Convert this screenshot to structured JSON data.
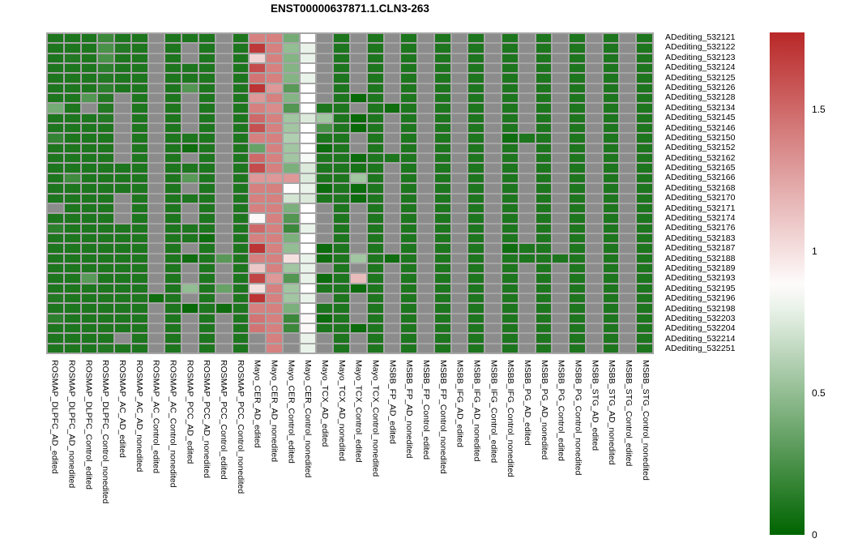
{
  "chart_data": {
    "type": "heatmap",
    "title": "ENST00000637871.1.CLN3-263",
    "rows": [
      "ADediting_532121",
      "ADediting_532122",
      "ADediting_532123",
      "ADediting_532124",
      "ADediting_532125",
      "ADediting_532126",
      "ADediting_532128",
      "ADediting_532134",
      "ADediting_532145",
      "ADediting_532146",
      "ADediting_532150",
      "ADediting_532152",
      "ADediting_532162",
      "ADediting_532165",
      "ADediting_532166",
      "ADediting_532168",
      "ADediting_532170",
      "ADediting_532171",
      "ADediting_532174",
      "ADediting_532176",
      "ADediting_532183",
      "ADediting_532187",
      "ADediting_532188",
      "ADediting_532189",
      "ADediting_532193",
      "ADediting_532195",
      "ADediting_532196",
      "ADediting_532198",
      "ADediting_532203",
      "ADediting_532204",
      "ADediting_532214",
      "ADediting_532251"
    ],
    "columns": [
      "ROSMAP_DLPFC_AD_edited",
      "ROSMAP_DLPFC_AD_nonedited",
      "ROSMAP_DLPFC_Control_edited",
      "ROSMAP_DLPFC_Control_nonedited",
      "ROSMAP_AC_AD_edited",
      "ROSMAP_AC_AD_nonedited",
      "ROSMAP_AC_Control_edited",
      "ROSMAP_AC_Control_nonedited",
      "ROSMAP_PCC_AD_edited",
      "ROSMAP_PCC_AD_nonedited",
      "ROSMAP_PCC_Control_edited",
      "ROSMAP_PCC_Control_nonedited",
      "Mayo_CER_AD_edited",
      "Mayo_CER_AD_nonedited",
      "Mayo_CER_Control_edited",
      "Mayo_CER_Control_nonedited",
      "Mayo_TCX_AD_edited",
      "Mayo_TCX_AD_nonedited",
      "Mayo_TCX_Control_edited",
      "Mayo_TCX_Control_nonedited",
      "MSBB_FP_AD_edited",
      "MSBB_FP_AD_nonedited",
      "MSBB_FP_Control_edited",
      "MSBB_FP_Control_nonedited",
      "MSBB_IFG_AD_edited",
      "MSBB_IFG_AD_nonedited",
      "MSBB_IFG_Control_edited",
      "MSBB_IFG_Control_nonedited",
      "MSBB_PG_AD_edited",
      "MSBB_PG_AD_nonedited",
      "MSBB_PG_Control_edited",
      "MSBB_PG_Control_nonedited",
      "MSBB_STG_AD_edited",
      "MSBB_STG_AD_nonedited",
      "MSBB_STG_Control_edited",
      "MSBB_STG_Control_nonedited"
    ],
    "values": [
      [
        0.1,
        0.1,
        0.1,
        0.2,
        0.1,
        0.1,
        null,
        0.1,
        0.1,
        0.1,
        null,
        0.1,
        1.4,
        1.4,
        0.4,
        0.87,
        null,
        0.1,
        null,
        0.1,
        null,
        0.1,
        null,
        0.1,
        null,
        0.1,
        null,
        0.1,
        null,
        0.1,
        null,
        0.1,
        null,
        0.1,
        null,
        0.1
      ],
      [
        0.1,
        0.1,
        0.1,
        0.25,
        0.12,
        0.1,
        null,
        0.1,
        null,
        0.1,
        null,
        0.1,
        1.7,
        1.4,
        0.5,
        0.8,
        null,
        0.1,
        null,
        0.1,
        null,
        0.1,
        null,
        0.1,
        null,
        0.1,
        null,
        0.1,
        null,
        0.1,
        null,
        0.1,
        null,
        0.1,
        null,
        0.1
      ],
      [
        0.1,
        0.12,
        0.1,
        0.25,
        0.1,
        0.1,
        null,
        0.1,
        null,
        0.1,
        null,
        0.1,
        1.05,
        1.4,
        0.45,
        0.8,
        null,
        0.1,
        null,
        0.1,
        null,
        0.1,
        null,
        0.1,
        null,
        0.1,
        null,
        0.1,
        null,
        0.1,
        null,
        0.1,
        null,
        0.1,
        null,
        0.1
      ],
      [
        0.1,
        0.1,
        0.1,
        0.15,
        0.1,
        0.1,
        null,
        0.1,
        0.1,
        0.1,
        null,
        0.1,
        1.62,
        1.4,
        0.45,
        0.87,
        null,
        0.1,
        null,
        0.1,
        null,
        0.1,
        null,
        0.1,
        null,
        0.1,
        null,
        0.1,
        null,
        0.1,
        null,
        0.1,
        null,
        0.1,
        null,
        0.1
      ],
      [
        0.1,
        0.1,
        0.1,
        0.12,
        0.1,
        0.1,
        null,
        0.1,
        0.1,
        0.1,
        null,
        0.1,
        1.45,
        1.4,
        0.45,
        0.8,
        null,
        0.1,
        null,
        0.1,
        null,
        0.1,
        null,
        0.1,
        null,
        0.1,
        null,
        0.1,
        null,
        0.1,
        null,
        0.1,
        null,
        0.1,
        null,
        0.1
      ],
      [
        0.1,
        0.1,
        0.1,
        0.15,
        0.1,
        0.1,
        null,
        0.1,
        0.28,
        0.1,
        null,
        0.1,
        1.72,
        1.3,
        0.3,
        0.87,
        null,
        0.1,
        null,
        0.1,
        null,
        0.1,
        null,
        0.1,
        null,
        0.1,
        null,
        0.1,
        null,
        0.1,
        null,
        0.1,
        null,
        0.1,
        null,
        0.1
      ],
      [
        0.1,
        0.1,
        0.28,
        0.12,
        null,
        0.1,
        null,
        0.1,
        null,
        0.1,
        null,
        0.1,
        1.3,
        1.4,
        0.45,
        0.87,
        null,
        0.1,
        0.03,
        0.1,
        null,
        0.1,
        null,
        0.1,
        null,
        0.1,
        null,
        0.1,
        null,
        0.1,
        null,
        0.1,
        null,
        0.1,
        null,
        0.1
      ],
      [
        0.4,
        0.1,
        null,
        0.12,
        null,
        0.1,
        null,
        0.1,
        null,
        0.1,
        null,
        0.1,
        1.4,
        1.35,
        0.28,
        0.87,
        0.1,
        0.1,
        null,
        0.1,
        0.05,
        0.1,
        null,
        0.1,
        null,
        0.1,
        null,
        0.1,
        null,
        0.1,
        null,
        0.1,
        null,
        0.1,
        null,
        0.1
      ],
      [
        0.1,
        0.1,
        0.1,
        0.12,
        null,
        0.1,
        null,
        0.1,
        null,
        0.1,
        null,
        0.1,
        1.5,
        1.4,
        0.55,
        0.75,
        0.55,
        0.1,
        0.03,
        0.1,
        null,
        0.1,
        null,
        0.1,
        null,
        0.1,
        null,
        0.1,
        null,
        0.1,
        null,
        0.1,
        null,
        0.1,
        null,
        0.1
      ],
      [
        0.1,
        0.1,
        0.1,
        0.1,
        null,
        0.1,
        null,
        0.1,
        null,
        0.1,
        null,
        0.1,
        1.6,
        1.4,
        0.55,
        0.87,
        0.25,
        0.1,
        0.03,
        0.1,
        null,
        0.1,
        null,
        0.1,
        null,
        0.1,
        null,
        0.1,
        null,
        0.1,
        null,
        0.1,
        null,
        0.1,
        null,
        0.1
      ],
      [
        0.18,
        0.1,
        0.1,
        0.1,
        null,
        0.1,
        null,
        0.1,
        0.1,
        0.1,
        null,
        0.1,
        1.4,
        1.4,
        0.6,
        0.87,
        0.1,
        0.1,
        null,
        0.1,
        null,
        0.1,
        null,
        0.1,
        null,
        0.1,
        null,
        0.05,
        0.1,
        0.1,
        null,
        0.1,
        null,
        0.1,
        null,
        0.1
      ],
      [
        0.1,
        0.1,
        0.1,
        0.1,
        null,
        0.1,
        null,
        0.1,
        0.05,
        0.1,
        null,
        0.1,
        0.35,
        1.4,
        0.55,
        0.87,
        0.04,
        0.1,
        null,
        0.1,
        null,
        0.1,
        null,
        0.1,
        null,
        0.1,
        null,
        0.1,
        null,
        0.1,
        null,
        0.1,
        null,
        0.1,
        null,
        0.1
      ],
      [
        0.1,
        0.1,
        0.1,
        0.1,
        null,
        0.1,
        null,
        0.1,
        null,
        0.1,
        null,
        0.1,
        1.5,
        1.4,
        0.55,
        0.84,
        0.1,
        0.1,
        0.04,
        0.1,
        0.1,
        0.1,
        null,
        0.1,
        null,
        0.1,
        null,
        0.1,
        null,
        0.1,
        null,
        0.1,
        null,
        0.1,
        null,
        0.1
      ],
      [
        0.1,
        0.1,
        0.1,
        0.1,
        0.1,
        0.1,
        null,
        0.1,
        0.1,
        0.1,
        null,
        0.1,
        1.62,
        1.4,
        0.42,
        0.75,
        0.1,
        0.1,
        0.08,
        0.1,
        null,
        0.1,
        null,
        0.1,
        null,
        0.1,
        null,
        0.1,
        null,
        0.1,
        null,
        0.1,
        null,
        0.1,
        null,
        0.1
      ],
      [
        0.1,
        0.22,
        0.1,
        0.1,
        0.1,
        0.1,
        null,
        0.1,
        0.3,
        0.1,
        null,
        0.1,
        1.3,
        1.3,
        1.3,
        0.75,
        0.1,
        0.1,
        0.55,
        0.1,
        null,
        0.1,
        null,
        0.1,
        null,
        0.1,
        null,
        0.1,
        null,
        0.1,
        null,
        0.1,
        null,
        0.1,
        null,
        0.1
      ],
      [
        0.1,
        0.1,
        0.1,
        0.1,
        0.1,
        0.1,
        null,
        0.1,
        null,
        0.1,
        null,
        0.1,
        1.4,
        1.4,
        0.88,
        0.8,
        0.04,
        0.1,
        0.04,
        0.1,
        null,
        0.1,
        null,
        0.1,
        null,
        0.1,
        null,
        0.1,
        null,
        0.1,
        null,
        0.1,
        null,
        0.1,
        null,
        0.1
      ],
      [
        0.1,
        0.1,
        0.1,
        0.1,
        null,
        0.1,
        null,
        0.1,
        0.1,
        0.1,
        null,
        0.1,
        1.4,
        1.4,
        0.72,
        0.75,
        0.1,
        0.1,
        0.04,
        0.1,
        null,
        0.1,
        null,
        0.1,
        null,
        0.1,
        null,
        0.1,
        null,
        0.1,
        null,
        0.1,
        null,
        0.1,
        null,
        0.1
      ],
      [
        null,
        0.1,
        0.1,
        0.1,
        null,
        0.1,
        null,
        0.1,
        null,
        0.1,
        null,
        0.1,
        1.4,
        1.4,
        0.42,
        0.87,
        null,
        0.1,
        null,
        0.1,
        null,
        0.1,
        null,
        0.1,
        null,
        0.1,
        null,
        0.1,
        null,
        0.1,
        null,
        0.1,
        null,
        0.1,
        null,
        0.1
      ],
      [
        0.1,
        0.1,
        0.1,
        0.1,
        null,
        0.1,
        null,
        0.1,
        null,
        0.1,
        null,
        0.1,
        0.9,
        1.4,
        0.28,
        0.87,
        null,
        0.1,
        null,
        0.1,
        null,
        0.1,
        null,
        0.1,
        null,
        0.1,
        null,
        0.1,
        null,
        0.1,
        null,
        0.1,
        null,
        0.1,
        null,
        0.1
      ],
      [
        0.15,
        0.1,
        0.1,
        0.1,
        0.1,
        0.1,
        null,
        0.1,
        0.1,
        0.1,
        null,
        0.1,
        1.5,
        1.4,
        0.2,
        0.8,
        null,
        0.1,
        null,
        0.1,
        null,
        0.1,
        null,
        0.1,
        null,
        0.1,
        null,
        0.1,
        null,
        0.1,
        null,
        0.1,
        null,
        0.1,
        null,
        0.1
      ],
      [
        0.1,
        0.1,
        0.1,
        0.1,
        0.1,
        0.1,
        null,
        0.1,
        0.1,
        0.05,
        null,
        0.1,
        1.4,
        1.4,
        0.42,
        0.87,
        null,
        0.1,
        null,
        0.1,
        null,
        0.1,
        null,
        0.1,
        null,
        0.1,
        null,
        0.1,
        null,
        0.1,
        null,
        0.1,
        null,
        0.1,
        null,
        0.1
      ],
      [
        0.1,
        0.1,
        0.1,
        0.1,
        0.1,
        0.1,
        null,
        0.1,
        null,
        0.1,
        null,
        0.1,
        1.72,
        1.4,
        0.5,
        0.87,
        0.04,
        0.1,
        null,
        0.1,
        null,
        0.1,
        null,
        0.1,
        null,
        0.1,
        null,
        0.05,
        0.1,
        0.1,
        null,
        0.1,
        null,
        0.1,
        null,
        0.1
      ],
      [
        0.1,
        0.1,
        0.1,
        0.1,
        0.1,
        0.1,
        null,
        0.1,
        0.05,
        0.1,
        0.3,
        0.1,
        1.4,
        1.4,
        1.0,
        0.8,
        0.05,
        0.1,
        0.55,
        0.1,
        0.05,
        0.1,
        null,
        0.1,
        null,
        0.1,
        null,
        0.1,
        0.1,
        0.1,
        0.1,
        0.1,
        null,
        0.1,
        null,
        0.1
      ],
      [
        0.1,
        0.1,
        0.1,
        0.1,
        0.1,
        0.1,
        null,
        0.1,
        null,
        0.1,
        null,
        0.1,
        1.1,
        1.4,
        0.55,
        0.8,
        null,
        0.1,
        null,
        0.1,
        null,
        0.1,
        null,
        0.1,
        null,
        0.1,
        null,
        0.1,
        null,
        0.1,
        null,
        0.1,
        null,
        0.1,
        null,
        0.1
      ],
      [
        0.1,
        0.1,
        0.3,
        0.1,
        0.1,
        0.1,
        null,
        0.1,
        null,
        0.1,
        null,
        0.1,
        1.65,
        1.3,
        0.28,
        0.8,
        0.04,
        0.1,
        1.15,
        0.1,
        null,
        0.1,
        null,
        0.1,
        null,
        0.1,
        null,
        0.1,
        null,
        0.1,
        null,
        0.1,
        null,
        0.1,
        null,
        0.1
      ],
      [
        0.1,
        0.1,
        0.1,
        0.1,
        0.1,
        0.1,
        null,
        0.1,
        0.5,
        0.1,
        0.35,
        0.1,
        1.0,
        1.4,
        0.55,
        0.87,
        0.1,
        0.1,
        0.04,
        0.1,
        null,
        0.1,
        null,
        0.1,
        null,
        0.1,
        null,
        0.1,
        null,
        0.1,
        null,
        0.1,
        null,
        0.1,
        null,
        0.1
      ],
      [
        0.12,
        0.1,
        0.1,
        0.1,
        0.1,
        0.1,
        0.05,
        0.1,
        null,
        0.1,
        null,
        0.1,
        1.72,
        1.4,
        0.55,
        0.8,
        null,
        0.1,
        null,
        0.1,
        null,
        0.1,
        null,
        0.1,
        null,
        0.1,
        null,
        0.1,
        null,
        0.1,
        null,
        0.1,
        null,
        0.1,
        null,
        0.1
      ],
      [
        0.1,
        0.1,
        0.1,
        0.1,
        0.1,
        0.1,
        null,
        0.1,
        0.03,
        0.1,
        0.05,
        0.1,
        1.4,
        1.4,
        0.42,
        0.87,
        0.1,
        0.1,
        null,
        0.1,
        null,
        0.1,
        null,
        0.1,
        null,
        0.1,
        null,
        0.1,
        null,
        0.1,
        null,
        0.1,
        null,
        0.1,
        null,
        0.1
      ],
      [
        0.15,
        0.1,
        0.1,
        0.1,
        0.1,
        0.1,
        null,
        0.1,
        null,
        0.1,
        null,
        0.1,
        1.45,
        1.4,
        0.2,
        0.9,
        0.04,
        0.1,
        null,
        0.1,
        null,
        0.1,
        null,
        0.1,
        null,
        0.1,
        null,
        0.1,
        null,
        0.1,
        null,
        0.1,
        null,
        0.1,
        null,
        0.1
      ],
      [
        0.1,
        0.1,
        0.1,
        0.1,
        0.1,
        0.1,
        null,
        0.1,
        null,
        0.1,
        null,
        0.1,
        1.45,
        1.4,
        0.2,
        0.9,
        0.1,
        0.1,
        0.04,
        0.1,
        null,
        0.1,
        null,
        0.1,
        null,
        0.1,
        null,
        0.1,
        null,
        0.1,
        null,
        0.1,
        null,
        0.1,
        null,
        0.1
      ],
      [
        0.1,
        0.1,
        0.1,
        0.1,
        null,
        0.1,
        null,
        0.1,
        null,
        0.1,
        null,
        0.1,
        null,
        1.4,
        null,
        0.8,
        null,
        0.1,
        null,
        0.1,
        null,
        0.1,
        null,
        0.1,
        null,
        0.1,
        null,
        0.1,
        null,
        0.1,
        null,
        0.1,
        null,
        0.1,
        null,
        0.1
      ],
      [
        0.1,
        0.1,
        0.1,
        0.12,
        0.1,
        0.1,
        null,
        0.1,
        null,
        0.1,
        null,
        0.1,
        null,
        1.4,
        null,
        0.8,
        null,
        0.1,
        null,
        0.1,
        null,
        0.1,
        null,
        0.1,
        null,
        0.1,
        null,
        0.1,
        null,
        0.1,
        null,
        0.1,
        null,
        0.1,
        null,
        0.1
      ]
    ],
    "colorbar": {
      "vmax": 1.77,
      "white_point": 0.87,
      "ticks": [
        {
          "value": 1.5,
          "label": "1.5"
        },
        {
          "value": 1.0,
          "label": "1"
        },
        {
          "value": 0.5,
          "label": "0.5"
        },
        {
          "value": 0.0,
          "label": "0"
        }
      ],
      "color_low": "#006400",
      "color_mid": "#ffffff",
      "color_high": "#b92828",
      "na_color": "#8c8c8c",
      "grid_color": "#a6a6a6"
    },
    "legend_position": "right",
    "grid": true
  }
}
